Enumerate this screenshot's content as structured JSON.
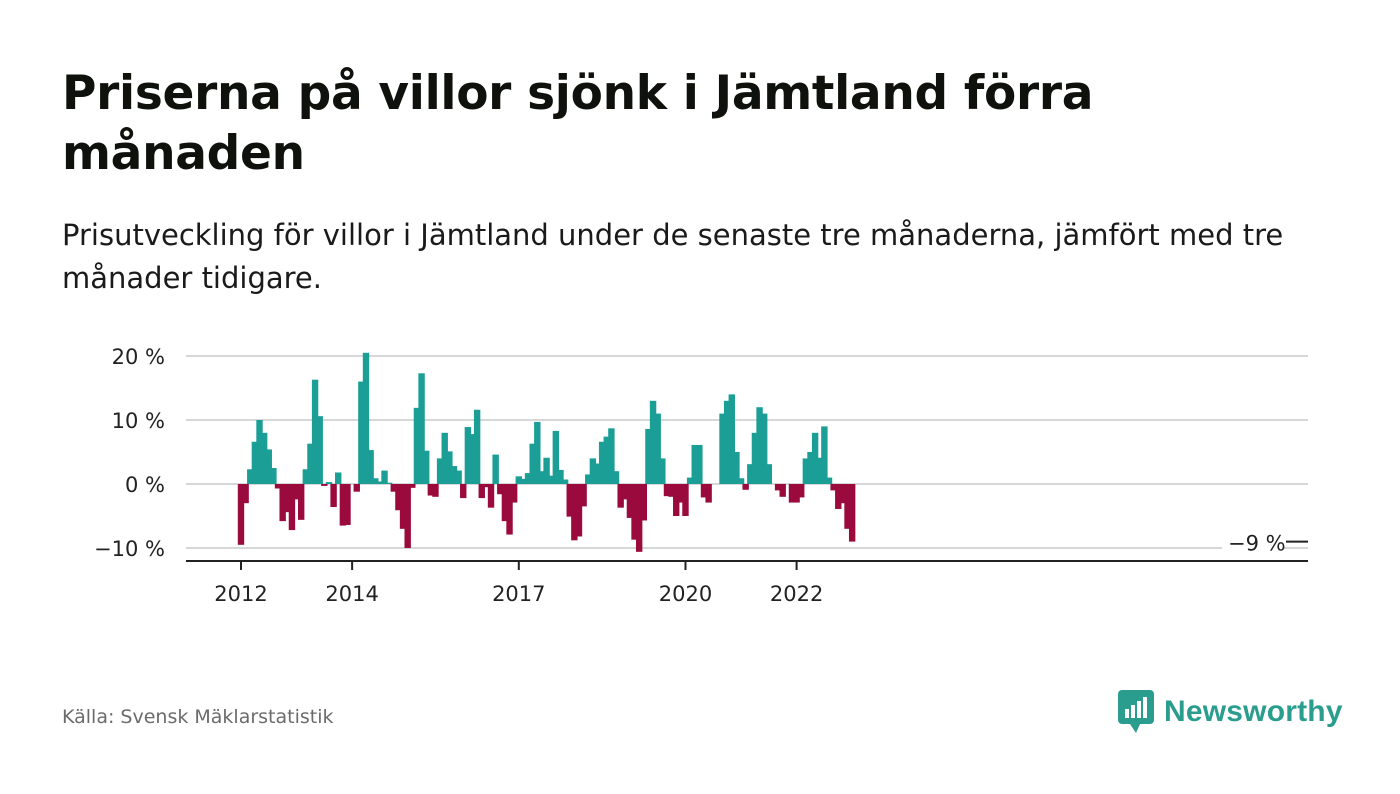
{
  "title": "Priserna på villor sjönk i Jämtland förra månaden",
  "subtitle": "Prisutveckling för villor i Jämtland under de senaste tre månaderna, jämfört med tre månader tidigare.",
  "source": "Källa: Svensk Mäklarstatistik",
  "brand": {
    "name": "Newsworthy",
    "icon": "bar-chart-speech-bubble-icon",
    "color": "#2a9d8f"
  },
  "colors": {
    "positive": "#1a9e96",
    "negative": "#9b0a3c",
    "grid": "#d7d7d7",
    "axis": "#222222"
  },
  "chart_data": {
    "type": "bar",
    "title": "",
    "xlabel": "",
    "ylabel": "",
    "ylim": [
      -12,
      21
    ],
    "yticks": [
      20,
      10,
      0,
      -10
    ],
    "ytick_labels": [
      "20 %",
      "10 %",
      "0 %",
      "−10 %"
    ],
    "xtick_labels": [
      {
        "label": "2012",
        "index": 0
      },
      {
        "label": "2014",
        "index": 24
      },
      {
        "label": "2017",
        "index": 60
      },
      {
        "label": "2020",
        "index": 96
      },
      {
        "label": "2022",
        "index": 120
      }
    ],
    "start_month": "2012-01",
    "grid": true,
    "last_value_label": "−9 %",
    "series": [
      {
        "values": [
          -9.5,
          -3,
          2.3,
          6.6,
          10,
          8,
          5.4,
          2.5,
          -0.7,
          -5.8,
          -4.4,
          -7.2,
          -2.4,
          -5.6,
          2.3,
          6.3,
          16.3,
          10.6,
          -0.3,
          0.3,
          -3.6,
          1.8,
          -6.5,
          -6.4,
          0,
          -1.2,
          16,
          20.5,
          5.3,
          0.9,
          0.4,
          2.1,
          0.2,
          -1.2,
          -4.1,
          -7,
          -10,
          -0.6,
          11.9,
          17.3,
          5.2,
          -1.8,
          -2,
          4,
          8,
          5.1,
          2.8,
          2.1,
          -2.2,
          8.9,
          7.8,
          11.6,
          -2.2,
          -0.5,
          -3.7,
          4.6,
          -1.6,
          -5.8,
          -7.9,
          -2.9,
          1.2,
          0.8,
          1.7,
          6.3,
          9.7,
          2,
          4.1,
          1.3,
          8.3,
          2.2,
          0.7,
          -5.1,
          -8.8,
          -8.2,
          -3.5,
          1.5,
          4,
          3.2,
          6.6,
          7.4,
          8.7,
          2,
          -3.7,
          -2.4,
          -5.3,
          -8.7,
          -10.6,
          -5.7,
          8.6,
          13,
          11,
          4,
          -1.9,
          -2,
          -5,
          -2.9,
          -5,
          1,
          6.1,
          6.1,
          -2.1,
          -2.9,
          0,
          0,
          11,
          13,
          14,
          5,
          0.9,
          -0.9,
          3.1,
          8,
          12,
          11,
          3.1,
          0,
          -1,
          -2,
          0,
          -2.9,
          -2.9,
          -2.1,
          4,
          5,
          8,
          4.1,
          9,
          1,
          -1,
          -3.9,
          -3,
          -7,
          -9
        ]
      }
    ]
  }
}
